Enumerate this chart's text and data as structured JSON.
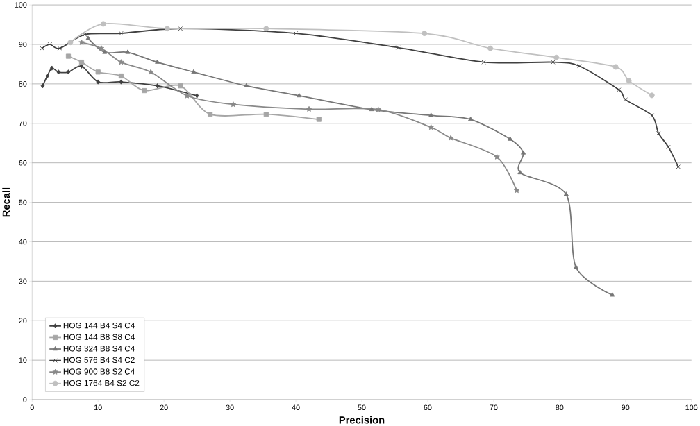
{
  "chart_data": {
    "type": "line",
    "xlabel": "Precision",
    "ylabel": "Recall",
    "xlim": [
      0,
      100
    ],
    "ylim": [
      0,
      100
    ],
    "xticks": [
      0,
      10,
      20,
      30,
      40,
      50,
      60,
      70,
      80,
      90,
      100
    ],
    "yticks": [
      0,
      10,
      20,
      30,
      40,
      50,
      60,
      70,
      80,
      90,
      100
    ],
    "grid": "y",
    "legend": "bottom left",
    "series": [
      {
        "name": "HOG 144 B4 S4 C4",
        "color": "#404040",
        "marker": "diamond",
        "x": [
          1.6,
          2.3,
          3,
          4,
          5.5,
          7.5,
          10,
          13.5,
          19,
          25
        ],
        "values": [
          79.5,
          82,
          84,
          83,
          83,
          84.5,
          80.5,
          80.5,
          79.5,
          77
        ]
      },
      {
        "name": "HOG 144 B8 S8 C4",
        "color": "#a6a6a6",
        "marker": "square",
        "x": [
          5.5,
          7.5,
          10,
          13.5,
          17,
          22.5,
          27,
          35.5,
          43.5
        ],
        "values": [
          87,
          85.5,
          83,
          82,
          78.3,
          79.5,
          72.3,
          72.3,
          71
        ]
      },
      {
        "name": "HOG 324 B8 S4 C4",
        "color": "#767676",
        "marker": "triangle",
        "x": [
          8.5,
          11,
          14.5,
          19,
          24.5,
          32.5,
          40.5,
          51.5,
          60.5,
          66.5,
          72.5,
          74.5,
          74,
          81,
          82.5,
          88
        ],
        "values": [
          91.5,
          88,
          88,
          85.5,
          83,
          79.5,
          77,
          73.5,
          72,
          71,
          66,
          62.5,
          57.5,
          52,
          33.5,
          26.5
        ]
      },
      {
        "name": "HOG 576 B4 S4 C2",
        "color": "#404040",
        "marker": "cross",
        "x": [
          1.5,
          2.7,
          4.2,
          8,
          13.5,
          22.5,
          40,
          55.5,
          68.5,
          79,
          83,
          89,
          90,
          94,
          95,
          96.5,
          98
        ],
        "values": [
          89,
          90,
          89,
          92.5,
          92.8,
          94,
          92.8,
          89.2,
          85.5,
          85.5,
          84.5,
          78.5,
          76,
          72,
          67.5,
          64,
          59
        ]
      },
      {
        "name": "HOG 900 B8 S2 C4",
        "color": "#898989",
        "marker": "star",
        "x": [
          7.5,
          10.5,
          13.5,
          18,
          23.5,
          30.5,
          42,
          52.5,
          60.5,
          63.5,
          70.5,
          73.5
        ],
        "values": [
          90.5,
          89,
          85.5,
          83,
          77,
          74.8,
          73.6,
          73.5,
          69,
          66.3,
          61.5,
          53
        ]
      },
      {
        "name": "HOG 1764 B4 S2 C2",
        "color": "#c0c0c0",
        "marker": "circle",
        "x": [
          5.8,
          10.8,
          20.5,
          35.5,
          59.5,
          69.5,
          79.5,
          88.5,
          90.5,
          94
        ],
        "values": [
          90.5,
          95.2,
          94,
          94,
          92.8,
          89,
          86.7,
          84.3,
          80.8,
          77.1
        ]
      }
    ]
  }
}
